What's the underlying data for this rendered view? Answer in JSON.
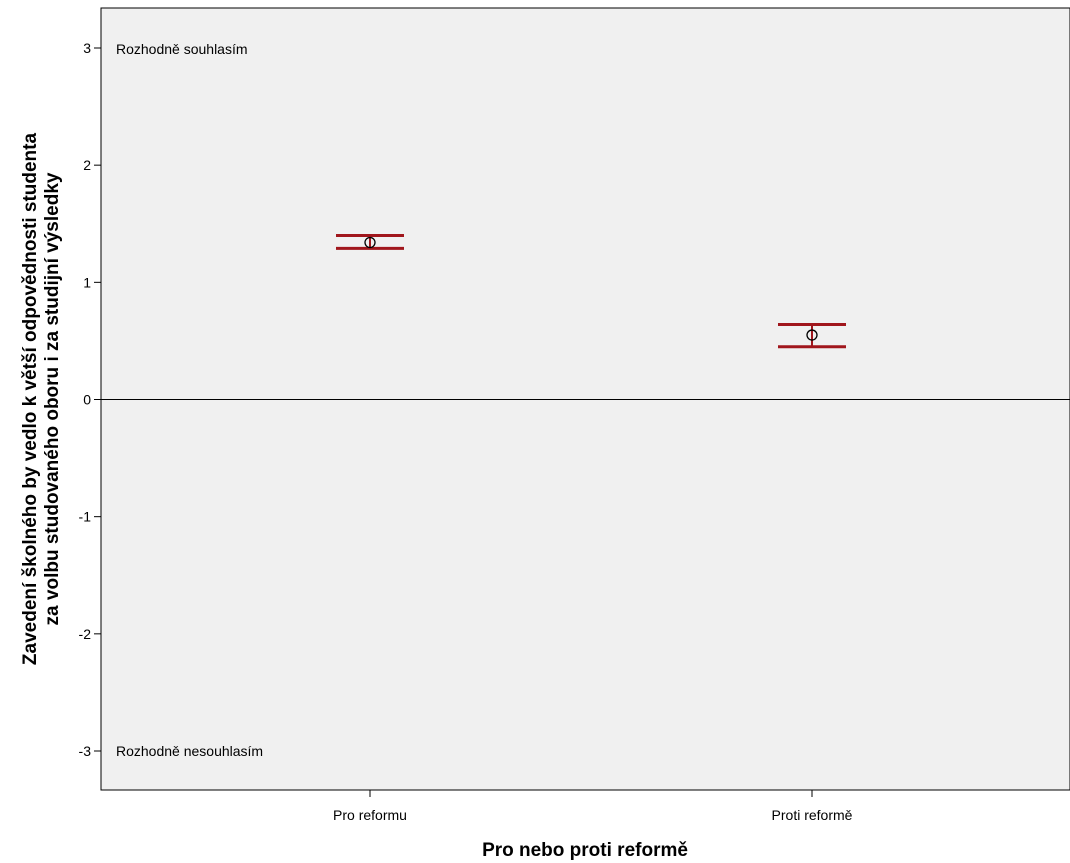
{
  "chart_data": {
    "type": "errorbar",
    "xlabel": "Pro nebo proti reformě",
    "ylabel_lines": [
      "Zavedení školného by vedlo k větší odpovědnosti studenta",
      "za volbu studovaného oboru i za studijní výsledky"
    ],
    "categories": [
      "Pro reformu",
      "Proti reformě"
    ],
    "means": [
      1.34,
      0.55
    ],
    "ci_lower": [
      1.29,
      0.45
    ],
    "ci_upper": [
      1.4,
      0.64
    ],
    "ylim": [
      -3.35,
      3.35
    ],
    "yticks": [
      3,
      2,
      1,
      0,
      -1,
      -2,
      -3
    ],
    "ytick_labels": [
      "3",
      "2",
      "1",
      "0",
      "-1",
      "-2",
      "-3"
    ],
    "reference_line_y": 0,
    "annotations": {
      "top_label": "Rozhodně souhlasím",
      "bottom_label": "Rozhodně nesouhlasím"
    },
    "colors": {
      "plot_background": "#f0f0f0",
      "error_bar": "#a0161c",
      "marker": "#000000"
    },
    "legend": "none",
    "grid": false
  }
}
